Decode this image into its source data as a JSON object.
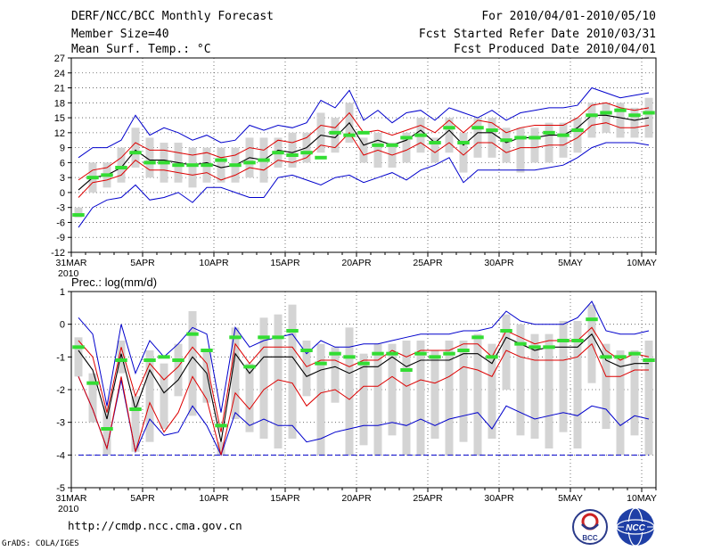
{
  "header": {
    "title": "DERF/NCC/BCC Monthly Forecast",
    "member": "Member Size=40",
    "variable": "Mean Surf. Temp.: °C",
    "period": "For 2010/04/01-2010/05/10",
    "started": "Fcst Started Refer Date 2010/03/31",
    "produced": "Fcst Produced Date 2010/04/01"
  },
  "footer": {
    "url": "http://cmdp.ncc.cma.gov.cn",
    "grads": "GrADS: COLA/IGES",
    "logo_bcc": "BCC",
    "logo_ncc": "NCC"
  },
  "colors": {
    "box": "#d4d4d4",
    "median": "#33dd33",
    "mean": "#000000",
    "std": "#dd0000",
    "extreme": "#0000cc",
    "grid": "#555555"
  },
  "chart_data": [
    {
      "type": "line",
      "title": "Mean Surf. Temp.: °C",
      "xlabel": "",
      "ylabel": "°C",
      "ylim": [
        -12,
        27
      ],
      "yticks": [
        -12,
        -9,
        -6,
        -3,
        0,
        3,
        6,
        9,
        12,
        15,
        18,
        21,
        24,
        27
      ],
      "xtick_labels": [
        "31MAR",
        "5APR",
        "10APR",
        "15APR",
        "20APR",
        "25APR",
        "30APR",
        "5MAY",
        "10MAY"
      ],
      "xtick_sublabel": "2010",
      "x_days": 41,
      "series": [
        {
          "name": "max",
          "values": [
            7,
            9,
            9,
            10.5,
            15.5,
            11.5,
            13,
            12,
            10.5,
            11.5,
            10,
            10.5,
            13.5,
            12.5,
            13.5,
            13,
            14,
            18.5,
            17,
            20.5,
            14.5,
            16.5,
            14,
            16,
            16.5,
            14.5,
            17,
            16,
            15,
            16.5,
            14.5,
            16,
            16.5,
            17,
            17,
            17.5,
            21,
            20,
            19,
            19.5,
            20
          ]
        },
        {
          "name": "plus1sd",
          "values": [
            2.5,
            4.5,
            5,
            7,
            10,
            8.5,
            8.5,
            8,
            7.5,
            8,
            7,
            7.5,
            9,
            8.5,
            10.5,
            10,
            11,
            13.5,
            13,
            16,
            12,
            12.5,
            11.5,
            12.5,
            13.5,
            12,
            14.5,
            12,
            14.5,
            14,
            12,
            13,
            13.5,
            13.5,
            13.5,
            15,
            17.5,
            18,
            17,
            16.5,
            17
          ]
        },
        {
          "name": "mean",
          "values": [
            0.5,
            3,
            3.5,
            5,
            8.5,
            6.5,
            6.5,
            6,
            5.5,
            6,
            5,
            5.5,
            7,
            6.5,
            8.5,
            8,
            9,
            11.5,
            11,
            14,
            9.5,
            10.5,
            9.5,
            10.5,
            12.5,
            10,
            12.5,
            9.5,
            12,
            12,
            10,
            11,
            11,
            11.5,
            11.5,
            13,
            15.5,
            15.5,
            15,
            14.5,
            15
          ]
        },
        {
          "name": "minus1sd",
          "values": [
            -1,
            2,
            2.5,
            3.5,
            6.5,
            4.5,
            4.5,
            4,
            3.5,
            4,
            2.5,
            3.5,
            5,
            4.5,
            6.5,
            6,
            7,
            9.5,
            9,
            12,
            7.5,
            8.5,
            7.5,
            8.5,
            10,
            8,
            10,
            7.5,
            10,
            10,
            8,
            9,
            9,
            9.5,
            9.5,
            11,
            13.5,
            14,
            13,
            13,
            13.5
          ]
        },
        {
          "name": "min",
          "values": [
            -7,
            -3,
            -1.5,
            -1,
            1.5,
            -1.5,
            -1,
            0,
            -2,
            1,
            1,
            0,
            -1,
            -1,
            3,
            3.5,
            2.5,
            1.5,
            3,
            3.5,
            2,
            3,
            4,
            2.5,
            4.5,
            5.5,
            7,
            2,
            4.5,
            4.5,
            4.5,
            4.5,
            4.5,
            5,
            5.5,
            7,
            9,
            10,
            10,
            10,
            9.5
          ]
        },
        {
          "name": "box_top",
          "values": [
            -3,
            6,
            6,
            9,
            13,
            11,
            10,
            10,
            9,
            9,
            9,
            9,
            11,
            11,
            11,
            12,
            12,
            16,
            15,
            18,
            11,
            12,
            10,
            12,
            15,
            11,
            15,
            12,
            15,
            15,
            13,
            13,
            13,
            14,
            14,
            15,
            18,
            18,
            18,
            17,
            19
          ]
        },
        {
          "name": "box_bottom",
          "values": [
            -5,
            0,
            1,
            2,
            5,
            3,
            2,
            2,
            1,
            2,
            2,
            2,
            3,
            2,
            5,
            5,
            6,
            8,
            8,
            10,
            6,
            5,
            5,
            6,
            8,
            6,
            8,
            4,
            7,
            7,
            6,
            4,
            6,
            6,
            7,
            8,
            11,
            12,
            11,
            11,
            11
          ]
        },
        {
          "name": "median",
          "values": [
            -4.5,
            3,
            3.5,
            5,
            8,
            6,
            6,
            5.5,
            5.5,
            5.5,
            6.5,
            5.5,
            6,
            6.5,
            8,
            7.5,
            8,
            7,
            12,
            11.5,
            12,
            9.5,
            9.5,
            11,
            11.5,
            10,
            13,
            10,
            13,
            12.5,
            10.5,
            11,
            11,
            12,
            11.5,
            12.5,
            15.5,
            16,
            16.5,
            15.5,
            16
          ]
        }
      ]
    },
    {
      "type": "line",
      "title": "Prec.: log(mm/d)",
      "xlabel": "",
      "ylabel": "log(mm/d)",
      "ylim": [
        -5,
        1
      ],
      "yticks": [
        -5,
        -4,
        -3,
        -2,
        -1,
        0,
        1
      ],
      "xtick_labels": [
        "31MAR",
        "5APR",
        "10APR",
        "15APR",
        "20APR",
        "25APR",
        "30APR",
        "5MAY",
        "10MAY"
      ],
      "xtick_sublabel": "2010",
      "x_days": 41,
      "series": [
        {
          "name": "max",
          "values": [
            0.2,
            -0.3,
            -2.5,
            0,
            -1.5,
            -0.5,
            -1,
            -0.6,
            -0.1,
            -0.3,
            -2.7,
            -0.1,
            -0.7,
            -0.5,
            -0.4,
            -0.3,
            -0.9,
            -0.5,
            -0.7,
            -0.7,
            -0.6,
            -0.6,
            -0.5,
            -0.4,
            -0.3,
            -0.3,
            -0.3,
            -0.2,
            -0.2,
            -0.1,
            0.4,
            0.1,
            0,
            0,
            0,
            0.2,
            0.7,
            -0.2,
            -0.3,
            -0.3,
            -0.2
          ]
        },
        {
          "name": "plus1sd",
          "values": [
            -0.5,
            -1,
            -2.7,
            -0.7,
            -2.2,
            -1.2,
            -1.7,
            -1.3,
            -0.7,
            -1.2,
            -3.3,
            -0.6,
            -1.2,
            -0.7,
            -0.7,
            -0.7,
            -1.3,
            -1.1,
            -1.1,
            -1.3,
            -1.1,
            -1.1,
            -0.8,
            -1,
            -0.8,
            -0.8,
            -0.8,
            -0.6,
            -0.6,
            -1,
            -0.2,
            -0.4,
            -0.6,
            -0.5,
            -0.5,
            -0.5,
            -0.1,
            -0.8,
            -1.1,
            -0.9,
            -1
          ]
        },
        {
          "name": "mean",
          "values": [
            -0.8,
            -1.4,
            -2.9,
            -0.9,
            -2.6,
            -1.4,
            -2.1,
            -1.7,
            -1,
            -1.5,
            -3.6,
            -0.9,
            -1.5,
            -1,
            -1,
            -1,
            -1.6,
            -1.4,
            -1.3,
            -1.5,
            -1.3,
            -1.3,
            -1,
            -1.3,
            -1.1,
            -1.1,
            -1.1,
            -0.9,
            -0.9,
            -1.2,
            -0.4,
            -0.6,
            -0.8,
            -0.7,
            -0.7,
            -0.7,
            -0.3,
            -1.1,
            -1.3,
            -1.2,
            -1.2
          ]
        },
        {
          "name": "minus1sd",
          "values": [
            -1.6,
            -2.6,
            -3.8,
            -1.6,
            -3.9,
            -2.4,
            -3.3,
            -2.7,
            -1.6,
            -2.3,
            -4,
            -2.1,
            -2.6,
            -2,
            -1.7,
            -1.8,
            -2.5,
            -2.1,
            -2,
            -2.3,
            -1.9,
            -1.9,
            -1.6,
            -1.9,
            -1.7,
            -1.8,
            -1.6,
            -1.3,
            -1.4,
            -1.6,
            -0.8,
            -1,
            -1.1,
            -1.1,
            -1.1,
            -1,
            -0.6,
            -1.6,
            -1.6,
            -1.4,
            -1.4
          ]
        },
        {
          "name": "min",
          "values": [
            -1.6,
            -2.6,
            -3.8,
            -1.7,
            -3.9,
            -2.9,
            -3.4,
            -3.3,
            -2.5,
            -3.1,
            -4,
            -2.7,
            -3.1,
            -2.9,
            -3.1,
            -3.1,
            -3.6,
            -3.5,
            -3.3,
            -3.2,
            -3.1,
            -3.1,
            -3,
            -3.1,
            -2.9,
            -3.1,
            -2.9,
            -2.8,
            -2.7,
            -3.2,
            -2.5,
            -2.7,
            -2.9,
            -2.8,
            -2.7,
            -2.8,
            -2.5,
            -2.6,
            -3.1,
            -2.8,
            -2.9
          ]
        },
        {
          "name": "box_top",
          "values": [
            -0.4,
            -1.5,
            -2.5,
            -0.5,
            -2.2,
            -0.8,
            -1.2,
            -0.6,
            0.4,
            -0.8,
            -3.6,
            -0.1,
            -1.2,
            0.2,
            0.3,
            0.6,
            -0.5,
            -0.6,
            -0.7,
            -0.1,
            -0.9,
            -0.6,
            -0.6,
            -0.5,
            -0.5,
            -0.8,
            -0.5,
            -0.5,
            -0.3,
            -0.6,
            0.3,
            0,
            -0.3,
            -0.3,
            0.1,
            0.1,
            0.6,
            -0.6,
            -0.8,
            -0.8,
            -0.5
          ]
        },
        {
          "name": "box_bottom",
          "values": [
            -1.6,
            -3,
            -4,
            -1.5,
            -3.9,
            -3.6,
            -3.2,
            -2.2,
            -2.8,
            -2.4,
            -4,
            -2.9,
            -3.3,
            -3.5,
            -3.8,
            -3.5,
            -2.2,
            -4,
            -2.4,
            -4,
            -3.7,
            -4,
            -3.4,
            -4,
            -4,
            -3.5,
            -4,
            -3.6,
            -4,
            -3.5,
            -2,
            -3.4,
            -3.5,
            -3.8,
            -3.3,
            -3.8,
            -1.8,
            -3.2,
            -4,
            -3.4,
            -4
          ]
        },
        {
          "name": "median",
          "values": [
            -0.7,
            -1.8,
            -3.2,
            -1.1,
            -2.6,
            -1.1,
            -1,
            -1.1,
            -0.3,
            -0.8,
            -3.1,
            -0.4,
            -1.3,
            -0.4,
            -0.4,
            -0.2,
            -0.8,
            -1.2,
            -0.9,
            -1,
            -1.2,
            -0.9,
            -0.9,
            -1.4,
            -0.9,
            -1,
            -0.9,
            -0.8,
            -0.4,
            -1,
            -0.2,
            -0.6,
            -0.7,
            -0.7,
            -0.5,
            -0.5,
            0.15,
            -1,
            -1,
            -0.9,
            -1.1
          ]
        },
        {
          "name": "floor",
          "values": [
            -4,
            -4,
            -4,
            -4,
            -4,
            -4,
            -4,
            -4,
            -4,
            -4,
            -4,
            -4,
            -4,
            -4,
            -4,
            -4,
            -4,
            -4,
            -4,
            -4,
            -4,
            -4,
            -4,
            -4,
            -4,
            -4,
            -4,
            -4,
            -4,
            -4,
            -4,
            -4,
            -4,
            -4,
            -4,
            -4,
            -4,
            -4,
            -4,
            -4,
            -4
          ]
        }
      ]
    }
  ]
}
